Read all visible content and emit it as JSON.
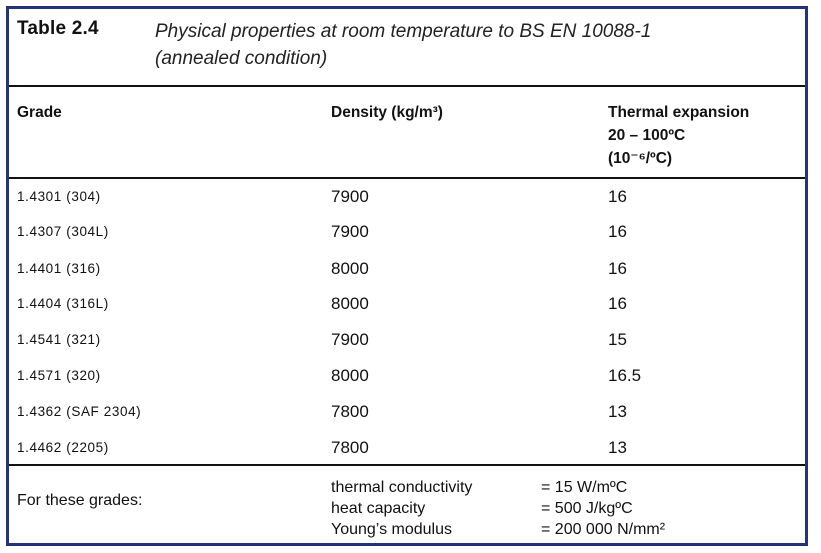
{
  "table": {
    "number": "Table 2.4",
    "title_line1": "Physical properties at room temperature to BS EN 10088-1",
    "title_line2": "(annealed condition)",
    "headers": {
      "grade": "Grade",
      "density": "Density (kg/m³)",
      "expansion_line1": "Thermal expansion",
      "expansion_line2": "20 – 100ºC",
      "expansion_line3": "(10⁻⁶/ºC)"
    },
    "rows": [
      {
        "grade": "1.4301  (304)",
        "density": "7900",
        "expansion": "16"
      },
      {
        "grade": "1.4307  (304L)",
        "density": "7900",
        "expansion": "16"
      },
      {
        "grade": "1.4401  (316)",
        "density": "8000",
        "expansion": "16"
      },
      {
        "grade": "1.4404  (316L)",
        "density": "8000",
        "expansion": "16"
      },
      {
        "grade": "1.4541  (321)",
        "density": "7900",
        "expansion": "15"
      },
      {
        "grade": "1.4571  (320)",
        "density": "8000",
        "expansion": "16.5"
      },
      {
        "grade": "1.4362  (SAF 2304)",
        "density": "7800",
        "expansion": "13"
      },
      {
        "grade": "1.4462  (2205)",
        "density": "7800",
        "expansion": "13"
      }
    ],
    "footer": {
      "label": "For these grades:",
      "properties": [
        {
          "name": "thermal conductivity",
          "value": "= 15 W/mºC"
        },
        {
          "name": "heat capacity",
          "value": "= 500 J/kgºC"
        },
        {
          "name": "Young’s modulus",
          "value": "= 200 000 N/mm²"
        }
      ]
    }
  },
  "colors": {
    "frame": "#23347a",
    "text": "#111111"
  }
}
